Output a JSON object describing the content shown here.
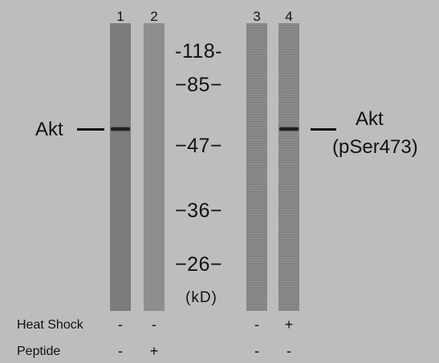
{
  "lanes": [
    {
      "number": "1",
      "heat_shock": "-",
      "peptide": "-"
    },
    {
      "number": "2",
      "heat_shock": "-",
      "peptide": "+"
    },
    {
      "number": "3",
      "heat_shock": "-",
      "peptide": "-"
    },
    {
      "number": "4",
      "heat_shock": "+",
      "peptide": "-"
    }
  ],
  "markers": [
    "-118-",
    "−85−",
    "−47−",
    "−36−",
    "−26−"
  ],
  "unit": "(kD)",
  "left_target": "Akt",
  "right_target_line1": "Akt",
  "right_target_line2": "(pSer473)",
  "row_labels": {
    "heat_shock": "Heat Shock",
    "peptide": "Peptide"
  },
  "colors": {
    "background": "#bdbdbd",
    "band": "#1f1f1f",
    "lane": "#7c7c7c"
  }
}
